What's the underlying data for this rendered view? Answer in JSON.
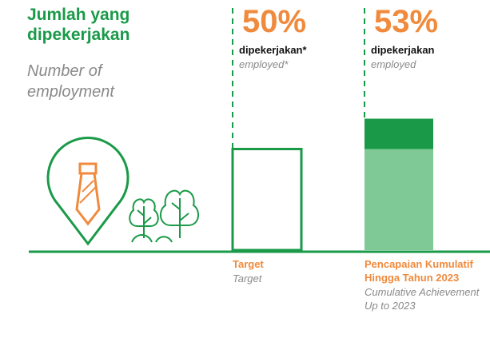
{
  "title": "Jumlah yang dipekerjakan",
  "subtitle": "Number of employment",
  "chart_data": {
    "type": "bar",
    "categories": [
      "Target",
      "Pencapaian Kumulatif Hingga Tahun 2023"
    ],
    "category_subtitles": [
      "Target",
      "Cumulative Achievement Up to 2023"
    ],
    "values": [
      50,
      53
    ],
    "value_labels": [
      "50%",
      "53%"
    ],
    "value_captions": [
      "dipekerjakan*",
      "dipekerjakan"
    ],
    "value_captions_en": [
      "employed*",
      "employed"
    ],
    "ylim": [
      40,
      60
    ],
    "colors": {
      "target": "#1a9a48",
      "achievement": "#7ec995",
      "excess": "#1a9a48"
    }
  }
}
